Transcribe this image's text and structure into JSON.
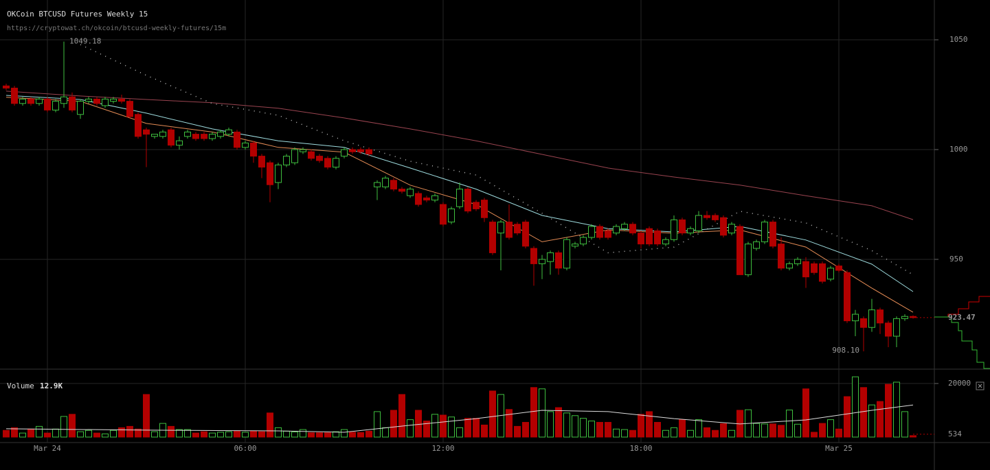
{
  "header": {
    "title": "OKCoin BTCUSD Futures Weekly 15",
    "url": "https://cryptowat.ch/okcoin/btcusd-weekly-futures/15m",
    "volume_name": "Volume",
    "volume_readout": "12.9K"
  },
  "chart_data": [
    {
      "type": "candlestick",
      "x": [
        -1.25,
        -1,
        -0.75,
        -0.5,
        -0.25,
        0,
        0.25,
        0.5,
        0.75,
        1,
        1.25,
        1.5,
        1.75,
        2,
        2.25,
        2.5,
        2.75,
        3,
        3.25,
        3.5,
        3.75,
        4,
        4.25,
        4.5,
        4.75,
        5,
        5.25,
        5.5,
        5.75,
        6,
        6.25,
        6.5,
        6.75,
        7,
        7.25,
        7.5,
        7.75,
        8,
        8.25,
        8.5,
        8.75,
        9,
        9.25,
        9.5,
        9.75,
        10,
        10.25,
        10.5,
        10.75,
        11,
        11.25,
        11.5,
        11.75,
        12,
        12.25,
        12.5,
        12.75,
        13,
        13.25,
        13.5,
        13.75,
        14,
        14.25,
        14.5,
        14.75,
        15,
        15.25,
        15.5,
        15.75,
        16,
        16.25,
        16.5,
        16.75,
        17,
        17.25,
        17.5,
        17.75,
        18,
        18.25,
        18.5,
        18.75,
        19,
        19.25,
        19.5,
        19.75,
        20,
        20.25,
        20.5,
        20.75,
        21,
        21.25,
        21.5,
        21.75,
        22,
        22.25,
        22.5,
        22.75,
        23,
        23.25,
        23.5,
        23.75,
        24,
        24.25,
        24.5,
        24.75,
        25,
        25.25,
        25.5,
        25.75,
        26,
        26.25
      ],
      "open": [
        1029,
        1028,
        1021,
        1023,
        1021,
        1023,
        1018,
        1021,
        1024,
        1016,
        1022,
        1023,
        1020,
        1022,
        1023,
        1022,
        1016,
        1009,
        1006,
        1006,
        1009,
        1002,
        1006,
        1007,
        1007,
        1005,
        1006,
        1007,
        1008,
        1001,
        1003,
        997,
        994,
        985,
        993,
        994,
        999,
        999,
        997,
        996,
        992,
        997,
        1000,
        1000,
        1000,
        983,
        983,
        986,
        982,
        979,
        980,
        978,
        977,
        975,
        967,
        974,
        982,
        976,
        977,
        967,
        962,
        967,
        966,
        967,
        955,
        948,
        949,
        953,
        946,
        956,
        957,
        960,
        965,
        963,
        962,
        964,
        966,
        962,
        964,
        963,
        957,
        959,
        968,
        962,
        963,
        970,
        970,
        969,
        962,
        965,
        943,
        955,
        958,
        967,
        957,
        946,
        948,
        949,
        948,
        948,
        941,
        947,
        944,
        922,
        923,
        919,
        927,
        921,
        915,
        923,
        924
      ],
      "high": [
        1030,
        1029,
        1024,
        1024,
        1024,
        1024,
        1023,
        1049.18,
        1026,
        1023,
        1024,
        1024,
        1024,
        1024,
        1025,
        1023,
        1017,
        1010,
        1007,
        1009,
        1010,
        1006,
        1009,
        1008,
        1008,
        1008,
        1009,
        1010,
        1009,
        1004,
        1004,
        998,
        995,
        994,
        998,
        1001,
        1001,
        1000,
        998,
        997,
        997,
        1001,
        1001,
        1001,
        1001,
        986,
        988,
        987,
        983,
        983,
        981,
        979,
        980,
        976,
        974,
        985,
        983,
        977,
        978,
        968,
        968,
        975,
        967,
        968,
        956,
        952,
        954,
        954,
        960,
        958,
        961,
        966,
        966,
        964,
        966,
        967,
        967,
        963,
        965,
        964,
        960,
        970,
        969,
        965,
        972,
        972,
        971,
        970,
        967,
        966,
        958,
        959,
        968,
        968,
        960,
        949,
        951,
        951,
        949,
        949,
        947,
        948,
        945,
        927,
        924,
        932,
        928,
        922,
        924,
        925,
        924.5
      ],
      "low": [
        1027,
        1020,
        1020,
        1020,
        1020,
        1017,
        1017,
        1019,
        1017,
        1014,
        1021,
        1020,
        1019,
        1021,
        1021,
        1014,
        1005,
        992,
        1005,
        1005,
        1001,
        1000,
        1005,
        1004,
        1004,
        1004,
        1005,
        1006,
        1000,
        1000,
        994,
        987,
        976,
        982,
        992,
        993,
        998,
        995,
        994,
        991,
        991,
        996,
        998,
        998,
        997,
        977,
        982,
        981,
        980,
        978,
        974,
        976,
        976,
        965,
        966,
        973,
        971,
        972,
        967,
        952,
        945,
        959,
        961,
        955,
        938,
        941,
        943,
        943,
        945,
        955,
        956,
        959,
        959,
        959,
        961,
        963,
        961,
        955,
        956,
        956,
        956,
        958,
        961,
        961,
        962,
        968,
        967,
        960,
        961,
        943,
        942,
        954,
        957,
        955,
        945,
        945,
        947,
        937,
        943,
        939,
        940,
        944,
        921,
        915,
        908.1,
        917,
        916,
        910,
        910,
        922,
        923
      ],
      "close": [
        1028,
        1021,
        1023,
        1021,
        1023,
        1018,
        1022,
        1024,
        1018,
        1022,
        1023,
        1021,
        1023,
        1023,
        1022,
        1015,
        1006,
        1007,
        1007,
        1008,
        1002,
        1004,
        1008,
        1005,
        1005,
        1007,
        1008,
        1009,
        1001,
        1003,
        997,
        992,
        984,
        993,
        997,
        1000,
        1000,
        996,
        995,
        992,
        996,
        1000,
        999,
        999,
        998,
        985,
        987,
        982,
        981,
        982,
        975,
        977,
        979,
        966,
        973,
        982,
        972,
        973,
        969,
        953,
        967,
        960,
        962,
        956,
        948,
        950,
        953,
        946,
        959,
        957,
        960,
        965,
        960,
        960,
        965,
        966,
        962,
        957,
        957,
        957,
        959,
        968,
        962,
        964,
        970,
        969,
        968,
        961,
        966,
        943,
        957,
        958,
        967,
        956,
        946,
        948,
        950,
        942,
        944,
        940,
        946,
        945,
        922,
        925,
        919,
        927,
        921,
        915,
        923,
        924,
        923.47
      ],
      "up_color": "#3fbf3f",
      "down_color": "#b30000",
      "xlim": [
        -1.4375,
        26.8958
      ],
      "ylim": [
        900,
        1068.125
      ],
      "yticks": [
        950,
        1000,
        1050
      ],
      "xticks": [
        {
          "value": 0,
          "label": "Mar 24"
        },
        {
          "value": 6,
          "label": "06:00"
        },
        {
          "value": 12,
          "label": "12:00"
        },
        {
          "value": 18,
          "label": "18:00"
        },
        {
          "value": 24,
          "label": "Mar 25"
        }
      ],
      "high_label": 1049.18,
      "low_label": {
        "value": 908.1,
        "label": "908.10"
      },
      "lines": [
        {
          "color": "#9a4450",
          "x": [
            -1.25,
            1,
            3,
            5,
            7,
            9,
            11,
            13,
            15,
            17,
            19,
            21,
            23,
            25,
            26.25
          ],
          "values": [
            1026.6,
            1024.4,
            1022.8,
            1021.3,
            1018.8,
            1014.4,
            1009.4,
            1004,
            997.8,
            991.6,
            987.5,
            983.8,
            979,
            974.4,
            968.1
          ]
        },
        {
          "color": "#9fdde0",
          "x": [
            -1.25,
            1,
            3,
            5,
            7,
            9,
            11,
            13,
            15,
            17,
            19,
            21,
            23,
            25,
            26.25
          ],
          "values": [
            1024.7,
            1022.8,
            1016.6,
            1009.4,
            1004,
            1001,
            991.6,
            982,
            970,
            964,
            962.5,
            965,
            958.8,
            947.8,
            935.3
          ]
        },
        {
          "color": "#e58c55",
          "x": [
            -1.25,
            1,
            3,
            5,
            7,
            9,
            11,
            13,
            15,
            17,
            19,
            21,
            23,
            25,
            26.25
          ],
          "values": [
            1023.8,
            1022,
            1011.9,
            1008,
            1001,
            998.8,
            983.8,
            975,
            958,
            963.4,
            961.9,
            963.4,
            955.6,
            936.9,
            925.9
          ]
        },
        {
          "color": "#bbbbbb",
          "dotted": true,
          "x": [
            1,
            3,
            5,
            7,
            9,
            11,
            13,
            15,
            17,
            19,
            21,
            23,
            25,
            26.25
          ],
          "values": [
            1047.8,
            1033.8,
            1021,
            1015.6,
            1004,
            994.7,
            988.4,
            971,
            953,
            955.6,
            971.9,
            966.6,
            954,
            943
          ]
        }
      ]
    },
    {
      "type": "volume",
      "values": [
        2500,
        3500,
        1500,
        3000,
        4000,
        1500,
        3000,
        7700,
        8500,
        2000,
        2500,
        1500,
        1200,
        2500,
        3500,
        4000,
        3000,
        15900,
        2000,
        5100,
        4000,
        2800,
        2800,
        1500,
        2000,
        1500,
        1800,
        2000,
        2200,
        1800,
        2300,
        2000,
        9000,
        3500,
        2200,
        1900,
        2800,
        1600,
        1600,
        1600,
        2000,
        2800,
        1800,
        1700,
        2200,
        9500,
        3500,
        10000,
        15900,
        6500,
        10000,
        6000,
        8500,
        8200,
        7500,
        3500,
        7000,
        7000,
        4500,
        17200,
        15900,
        10300,
        4000,
        5500,
        18500,
        18000,
        9500,
        11000,
        9000,
        8000,
        7000,
        6000,
        5500,
        5500,
        3000,
        2800,
        2500,
        8500,
        9500,
        5500,
        2500,
        3500,
        6500,
        2500,
        6500,
        3500,
        2500,
        5000,
        2500,
        10000,
        10200,
        5100,
        4900,
        4900,
        4400,
        10100,
        4800,
        18000,
        1800,
        5100,
        6500,
        3000,
        15100,
        22500,
        18500,
        12000,
        13300,
        19700,
        20500,
        9500,
        534
      ],
      "ylim": [
        0,
        22800
      ],
      "yticks": [
        20000
      ],
      "lines": [
        {
          "color": "#dddddd",
          "x": [
            -1.25,
            3,
            7,
            9,
            11,
            13,
            15,
            17,
            19,
            21,
            23,
            25,
            26.25
          ],
          "values": [
            3100,
            2600,
            2300,
            1800,
            4400,
            6900,
            10000,
            9500,
            6900,
            4900,
            6400,
            10000,
            12000
          ]
        }
      ]
    }
  ]
}
